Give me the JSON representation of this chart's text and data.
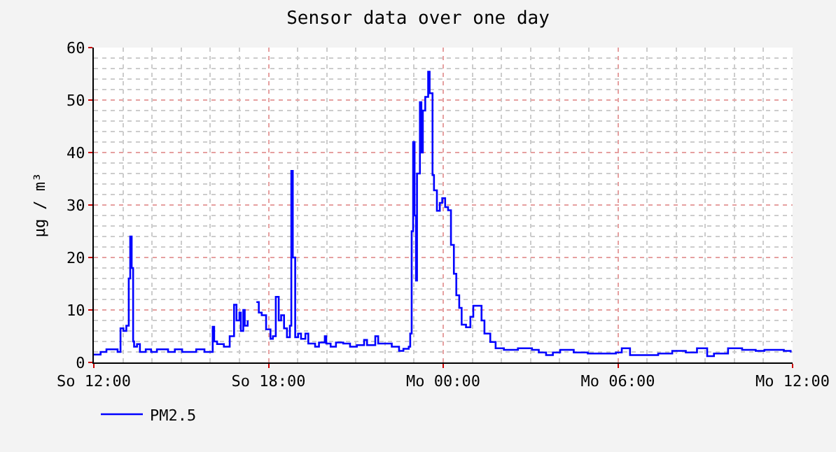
{
  "chart_data": {
    "type": "step",
    "title": "Sensor data over one day",
    "ylabel": "µg / m³",
    "series": [
      {
        "name": "PM2.5",
        "color": "#0000ff",
        "x": [
          "--01-05T12:00",
          "--01-05T12:14",
          "--01-05T12:26",
          "--01-05T12:38",
          "--01-05T12:49",
          "--01-05T12:55",
          "--01-05T13:01",
          "--01-05T13:07",
          "--01-05T13:12",
          "--01-05T13:15",
          "--01-05T13:18",
          "--01-05T13:21",
          "--01-05T13:23",
          "--01-05T13:29",
          "--01-05T13:35",
          "--01-05T13:47",
          "--01-05T13:58",
          "--01-05T14:10",
          "--01-05T14:22",
          "--01-05T14:33",
          "--01-05T14:47",
          "--01-05T15:02",
          "--01-05T15:19",
          "--01-05T15:31",
          "--01-05T15:48",
          "--01-05T16:05",
          "--01-05T16:08",
          "--01-05T16:14",
          "--01-05T16:28",
          "--01-05T16:40",
          "--01-05T16:49",
          "--01-05T16:54",
          "--01-05T17:00",
          "--01-05T17:03",
          "--01-05T17:08",
          "--01-05T17:11",
          "--01-05T17:17",
          "--01-05T17:24",
          "--01-05T17:35",
          "--01-05T17:40",
          "--01-05T17:46",
          "--01-05T17:55",
          "--01-05T18:04",
          "--01-05T18:09",
          "--01-05T18:15",
          "--01-05T18:21",
          "--01-05T18:26",
          "--01-05T18:32",
          "--01-05T18:38",
          "--01-05T18:44",
          "--01-05T18:47",
          "--01-05T18:50",
          "--01-05T18:55",
          "--01-05T19:01",
          "--01-05T19:07",
          "--01-05T19:16",
          "--01-05T19:22",
          "--01-05T19:36",
          "--01-05T19:44",
          "--01-05T19:56",
          "--01-05T19:59",
          "--01-05T20:08",
          "--01-05T20:19",
          "--01-05T20:34",
          "--01-05T20:48",
          "--01-05T21:02",
          "--01-05T21:17",
          "--01-05T21:23",
          "--01-05T21:40",
          "--01-05T21:46",
          "--01-05T22:00",
          "--01-05T22:14",
          "--01-05T22:29",
          "--01-05T22:38",
          "--01-05T22:49",
          "--01-05T22:52",
          "--01-05T22:55",
          "--01-05T22:58",
          "--01-05T23:01",
          "--01-05T23:04",
          "--01-05T23:06",
          "--01-05T23:12",
          "--01-05T23:15",
          "--01-05T23:18",
          "--01-05T23:23",
          "--01-05T23:29",
          "--01-05T23:32",
          "--01-05T23:38",
          "--01-05T23:41",
          "--01-05T23:47",
          "--01-05T23:53",
          "--01-05T23:58",
          "--01-06T00:04",
          "--01-06T00:10",
          "--01-06T00:16",
          "--01-06T00:22",
          "--01-06T00:27",
          "--01-06T00:33",
          "--01-06T00:38",
          "--01-06T00:47",
          "--01-06T00:56",
          "--01-06T01:02",
          "--01-06T01:13",
          "--01-06T01:19",
          "--01-06T01:25",
          "--01-06T01:37",
          "--01-06T01:48",
          "--01-06T02:05",
          "--01-06T02:34",
          "--01-06T03:03",
          "--01-06T03:17",
          "--01-06T03:32",
          "--01-06T03:46",
          "--01-06T04:01",
          "--01-06T04:29",
          "--01-06T04:58",
          "--01-06T05:27",
          "--01-06T05:56",
          "--01-06T06:08",
          "--01-06T06:25",
          "--01-06T06:53",
          "--01-06T07:23",
          "--01-06T07:52",
          "--01-06T08:20",
          "--01-06T08:43",
          "--01-06T09:04",
          "--01-06T09:18",
          "--01-06T09:47",
          "--01-06T10:16",
          "--01-06T10:44",
          "--01-06T11:02",
          "--01-06T11:42",
          "--01-06T11:56"
        ],
        "values": [
          1.5,
          2,
          2.5,
          2.5,
          2,
          6.5,
          6,
          7,
          16,
          24,
          18,
          4,
          3,
          3.5,
          2,
          2.5,
          2,
          2.5,
          2.5,
          2,
          2.5,
          2,
          2,
          2.5,
          2,
          6.8,
          4,
          3.5,
          3,
          5,
          11,
          8,
          9.5,
          6,
          10,
          7,
          8,
          null,
          11.5,
          9.5,
          9,
          6.3,
          4.5,
          5,
          12.5,
          8,
          9,
          6.5,
          4.8,
          7,
          36.5,
          20,
          4.8,
          5.5,
          4.5,
          5.5,
          3.6,
          3,
          3.8,
          5,
          3.6,
          3,
          3.8,
          3.6,
          3,
          3.3,
          4.3,
          3.3,
          5,
          3.6,
          3.6,
          3,
          2.2,
          2.6,
          3,
          5.5,
          25,
          42,
          28,
          15.6,
          36,
          49.6,
          40,
          48,
          50.6,
          55.4,
          51.3,
          35.7,
          32.8,
          28.9,
          30.4,
          31.3,
          29.6,
          29,
          22.4,
          16.9,
          12.8,
          10.4,
          7.2,
          6.7,
          8.7,
          10.8,
          10.8,
          8,
          5.5,
          3.9,
          2.7,
          2.4,
          2.7,
          2.4,
          1.9,
          1.4,
          1.9,
          2.4,
          1.9,
          1.7,
          1.7,
          1.9,
          2.7,
          1.4,
          1.4,
          1.7,
          2.2,
          1.9,
          2.7,
          1.2,
          1.7,
          2.7,
          2.4,
          2.2,
          2.4,
          2.2,
          1.9
        ]
      }
    ],
    "xlim": [
      "--01-05T12:00",
      "--01-06T12:00"
    ],
    "xticks": [
      {
        "value": "--01-05T12:00",
        "label": "So 12:00"
      },
      {
        "value": "--01-05T18:00",
        "label": "So 18:00"
      },
      {
        "value": "--01-06T00:00",
        "label": "Mo 00:00"
      },
      {
        "value": "--01-06T06:00",
        "label": "Mo 06:00"
      },
      {
        "value": "--01-06T12:00",
        "label": "Mo 12:00"
      }
    ],
    "ylim": [
      0,
      60
    ],
    "yticks": [
      0,
      10,
      20,
      30,
      40,
      50,
      60
    ],
    "grid": true,
    "legend": "bottom left",
    "line_style": "solid"
  }
}
